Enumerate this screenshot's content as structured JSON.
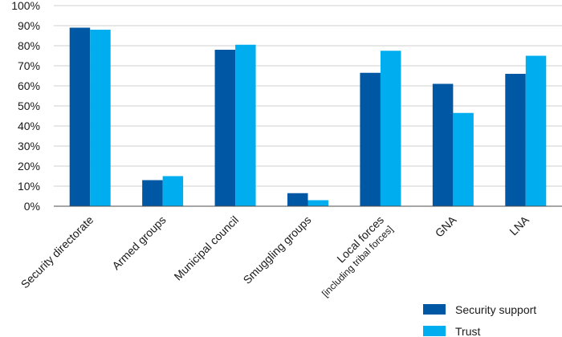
{
  "chart_data": {
    "type": "bar",
    "categories": [
      [
        "Security directorate"
      ],
      [
        "Armed groups"
      ],
      [
        "Municipal council"
      ],
      [
        "Smuggling groups"
      ],
      [
        "Local forces",
        "[including tribal forces]"
      ],
      [
        "GNA"
      ],
      [
        "LNA"
      ]
    ],
    "series": [
      {
        "name": "Security support",
        "color": "#0057a3",
        "values": [
          89,
          13,
          78,
          6.5,
          66.5,
          61,
          66
        ]
      },
      {
        "name": "Trust",
        "color": "#00aeef",
        "values": [
          88,
          15,
          80.5,
          3,
          77.5,
          46.5,
          75
        ]
      }
    ],
    "ylim": [
      0,
      100
    ],
    "yticks": [
      "0%",
      "10%",
      "20%",
      "30%",
      "40%",
      "50%",
      "60%",
      "70%",
      "80%",
      "90%",
      "100%"
    ],
    "grid": true,
    "legend": "bottom-right"
  }
}
